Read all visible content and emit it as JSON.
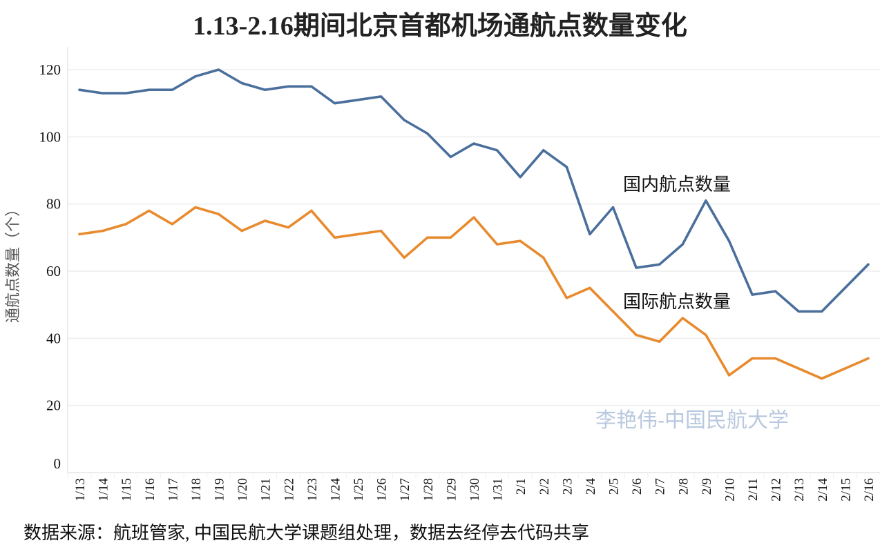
{
  "chart_data": {
    "type": "line",
    "title": "1.13-2.16期间北京首都机场通航点数量变化",
    "xlabel": "",
    "ylabel": "通航点数量（个）",
    "ylim": [
      0,
      120
    ],
    "yticks": [
      0,
      20,
      40,
      60,
      80,
      100,
      120
    ],
    "grid": true,
    "legend": "inline annotations",
    "categories": [
      "1/13",
      "1/14",
      "1/15",
      "1/16",
      "1/17",
      "1/18",
      "1/19",
      "1/20",
      "1/21",
      "1/22",
      "1/23",
      "1/24",
      "1/25",
      "1/26",
      "1/27",
      "1/28",
      "1/29",
      "1/30",
      "1/31",
      "2/1",
      "2/2",
      "2/3",
      "2/4",
      "2/5",
      "2/6",
      "2/7",
      "2/8",
      "2/9",
      "2/10",
      "2/11",
      "2/12",
      "2/13",
      "2/14",
      "2/15",
      "2/16"
    ],
    "series": [
      {
        "name": "国内航点数量",
        "color": "#4a6f9c",
        "values": [
          114,
          113,
          113,
          114,
          114,
          118,
          120,
          116,
          114,
          115,
          115,
          110,
          111,
          112,
          105,
          101,
          94,
          98,
          96,
          88,
          96,
          91,
          71,
          79,
          61,
          62,
          68,
          81,
          69,
          53,
          54,
          48,
          48,
          55,
          62
        ]
      },
      {
        "name": "国际航点数量",
        "color": "#e88a2e",
        "values": [
          71,
          72,
          74,
          78,
          74,
          79,
          77,
          72,
          75,
          73,
          78,
          70,
          71,
          72,
          64,
          70,
          70,
          76,
          68,
          69,
          64,
          52,
          55,
          48,
          41,
          39,
          46,
          41,
          29,
          34,
          34,
          31,
          28,
          31,
          34
        ]
      }
    ],
    "annotations": [
      {
        "text": "国内航点数量",
        "series": 0
      },
      {
        "text": "国际航点数量",
        "series": 1
      }
    ],
    "watermark": "李艳伟-中国民航大学"
  },
  "footer": {
    "source": "数据来源：航班管家, 中国民航大学课题组处理，数据去经停去代码共享"
  }
}
